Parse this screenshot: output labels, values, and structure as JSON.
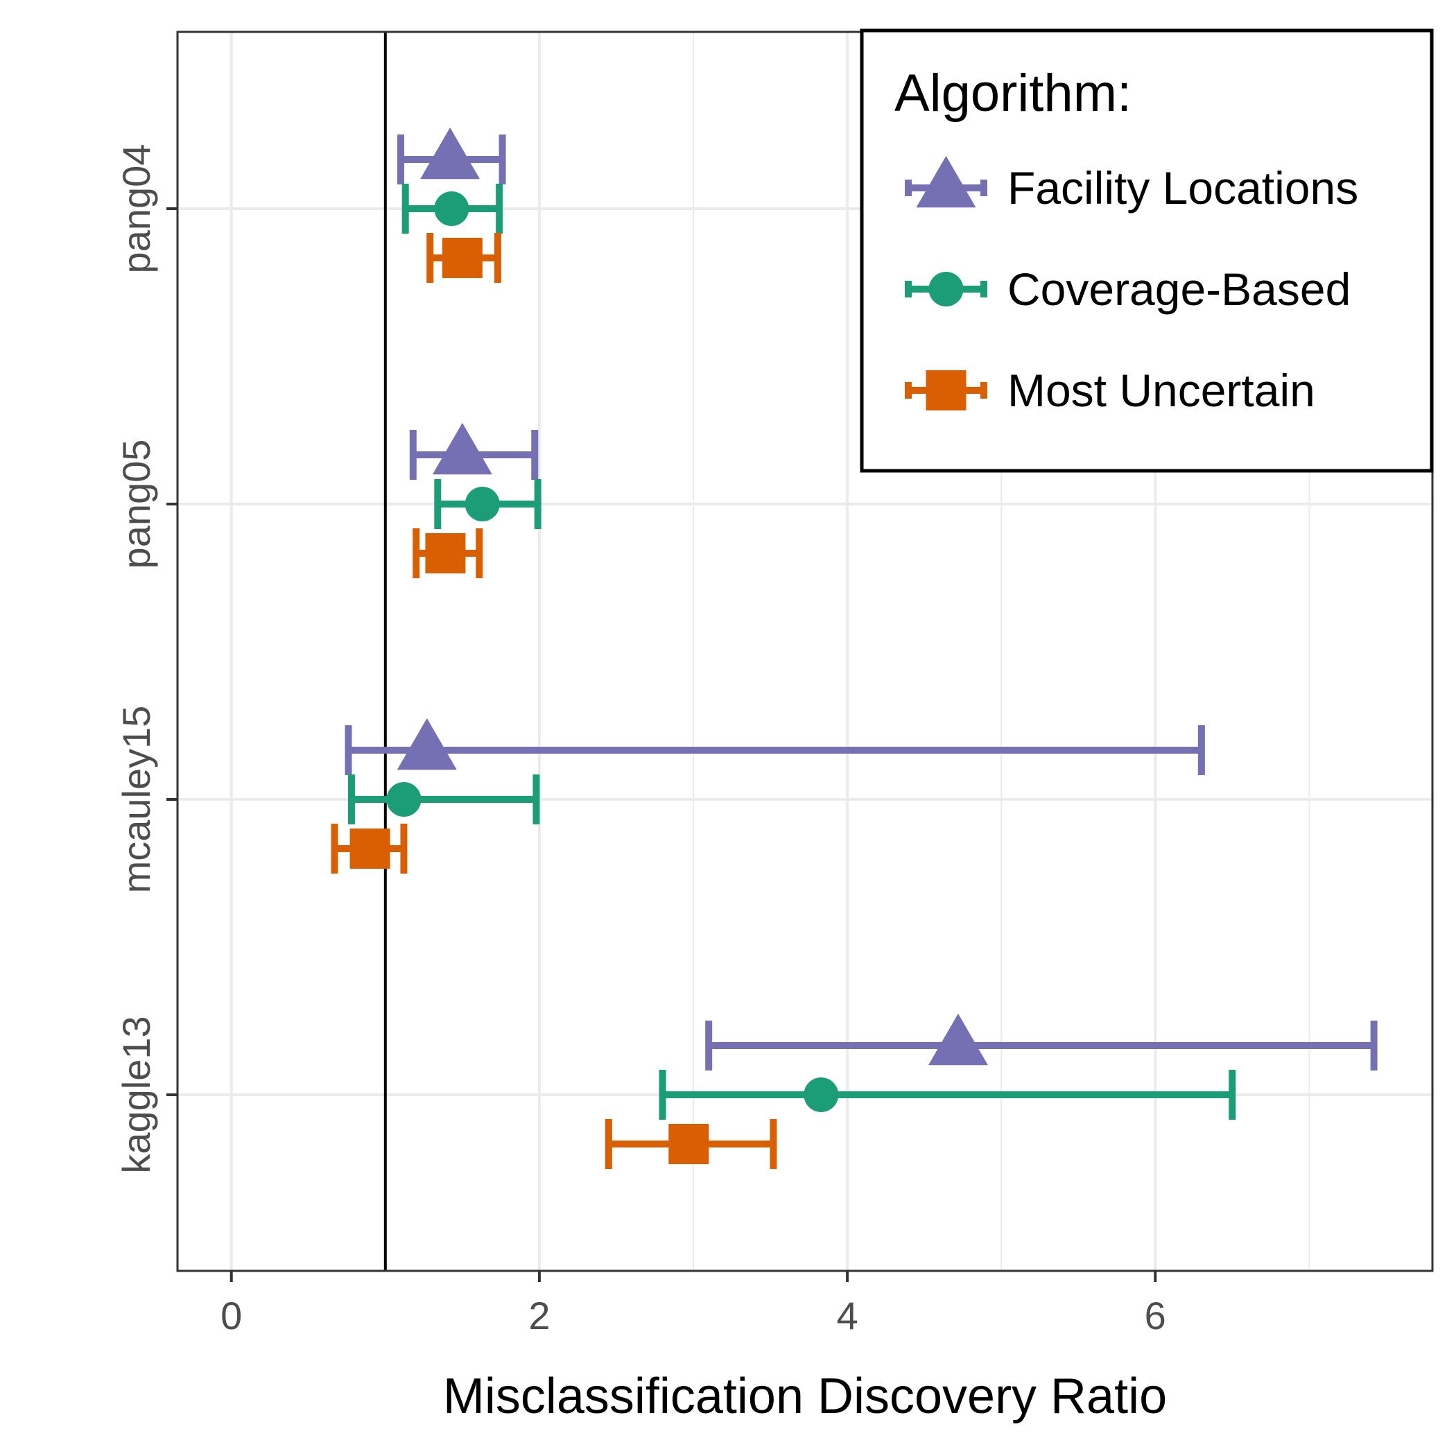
{
  "chart_data": {
    "type": "errorbar",
    "xlabel": "Misclassification Discovery Ratio",
    "ylabel": "",
    "xlim": [
      -0.35,
      7.8
    ],
    "x_ticks": [
      0,
      2,
      4,
      6
    ],
    "x_tick_labels": [
      "0",
      "2",
      "4",
      "6"
    ],
    "minor_grid_x": [
      1,
      3,
      5,
      7
    ],
    "reference_line_x": 1,
    "categories": [
      "pang04",
      "pang05",
      "mcauley15",
      "kaggle13"
    ],
    "grid": true,
    "legend": {
      "title": "Algorithm:",
      "position": "top-right"
    },
    "series": [
      {
        "name": "Facility Locations",
        "color": "#7570b3",
        "marker": "triangle",
        "points": [
          {
            "category": "pang04",
            "value": 1.42,
            "low": 1.1,
            "high": 1.76
          },
          {
            "category": "pang05",
            "value": 1.5,
            "low": 1.18,
            "high": 1.97
          },
          {
            "category": "mcauley15",
            "value": 1.27,
            "low": 0.76,
            "high": 6.3
          },
          {
            "category": "kaggle13",
            "value": 4.72,
            "low": 3.1,
            "high": 7.42
          }
        ]
      },
      {
        "name": "Coverage-Based",
        "color": "#1b9e77",
        "marker": "circle",
        "points": [
          {
            "category": "pang04",
            "value": 1.43,
            "low": 1.13,
            "high": 1.74
          },
          {
            "category": "pang05",
            "value": 1.63,
            "low": 1.34,
            "high": 1.99
          },
          {
            "category": "mcauley15",
            "value": 1.12,
            "low": 0.78,
            "high": 1.98
          },
          {
            "category": "kaggle13",
            "value": 3.83,
            "low": 2.8,
            "high": 6.5
          }
        ]
      },
      {
        "name": "Most Uncertain",
        "color": "#d95f02",
        "marker": "square",
        "points": [
          {
            "category": "pang04",
            "value": 1.5,
            "low": 1.29,
            "high": 1.73
          },
          {
            "category": "pang05",
            "value": 1.39,
            "low": 1.2,
            "high": 1.61
          },
          {
            "category": "mcauley15",
            "value": 0.9,
            "low": 0.67,
            "high": 1.12
          },
          {
            "category": "kaggle13",
            "value": 2.97,
            "low": 2.45,
            "high": 3.52
          }
        ]
      }
    ]
  }
}
